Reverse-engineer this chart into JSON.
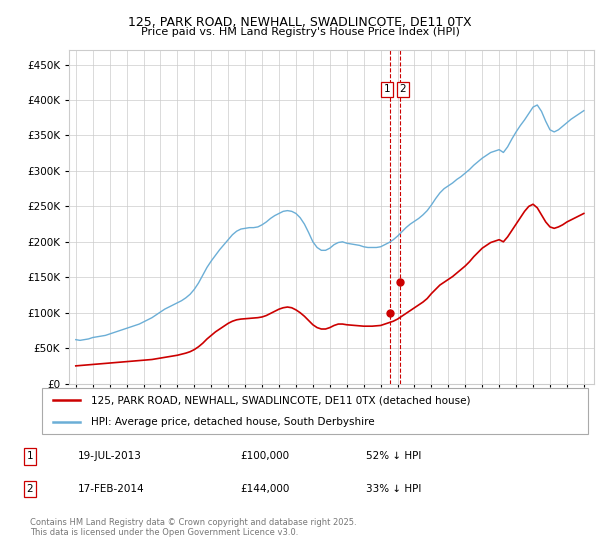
{
  "title1": "125, PARK ROAD, NEWHALL, SWADLINCOTE, DE11 0TX",
  "title2": "Price paid vs. HM Land Registry's House Price Index (HPI)",
  "legend1": "125, PARK ROAD, NEWHALL, SWADLINCOTE, DE11 0TX (detached house)",
  "legend2": "HPI: Average price, detached house, South Derbyshire",
  "footer": "Contains HM Land Registry data © Crown copyright and database right 2025.\nThis data is licensed under the Open Government Licence v3.0.",
  "transaction1_label": "1",
  "transaction1_date": "19-JUL-2013",
  "transaction1_price": "£100,000",
  "transaction1_hpi": "52% ↓ HPI",
  "transaction2_label": "2",
  "transaction2_date": "17-FEB-2014",
  "transaction2_price": "£144,000",
  "transaction2_hpi": "33% ↓ HPI",
  "hpi_color": "#6baed6",
  "price_color": "#cc0000",
  "dashed_line_color": "#cc0000",
  "marker1_date_x": 2013.55,
  "marker1_price_y": 100000,
  "marker2_date_x": 2014.13,
  "marker2_price_y": 144000,
  "ylim": [
    0,
    470000
  ],
  "yticks": [
    0,
    50000,
    100000,
    150000,
    200000,
    250000,
    300000,
    350000,
    400000,
    450000
  ],
  "xlim_left": 1994.6,
  "xlim_right": 2025.6,
  "hpi_data": {
    "x": [
      1995.0,
      1995.25,
      1995.5,
      1995.75,
      1996.0,
      1996.25,
      1996.5,
      1996.75,
      1997.0,
      1997.25,
      1997.5,
      1997.75,
      1998.0,
      1998.25,
      1998.5,
      1998.75,
      1999.0,
      1999.25,
      1999.5,
      1999.75,
      2000.0,
      2000.25,
      2000.5,
      2000.75,
      2001.0,
      2001.25,
      2001.5,
      2001.75,
      2002.0,
      2002.25,
      2002.5,
      2002.75,
      2003.0,
      2003.25,
      2003.5,
      2003.75,
      2004.0,
      2004.25,
      2004.5,
      2004.75,
      2005.0,
      2005.25,
      2005.5,
      2005.75,
      2006.0,
      2006.25,
      2006.5,
      2006.75,
      2007.0,
      2007.25,
      2007.5,
      2007.75,
      2008.0,
      2008.25,
      2008.5,
      2008.75,
      2009.0,
      2009.25,
      2009.5,
      2009.75,
      2010.0,
      2010.25,
      2010.5,
      2010.75,
      2011.0,
      2011.25,
      2011.5,
      2011.75,
      2012.0,
      2012.25,
      2012.5,
      2012.75,
      2013.0,
      2013.25,
      2013.5,
      2013.75,
      2014.0,
      2014.25,
      2014.5,
      2014.75,
      2015.0,
      2015.25,
      2015.5,
      2015.75,
      2016.0,
      2016.25,
      2016.5,
      2016.75,
      2017.0,
      2017.25,
      2017.5,
      2017.75,
      2018.0,
      2018.25,
      2018.5,
      2018.75,
      2019.0,
      2019.25,
      2019.5,
      2019.75,
      2020.0,
      2020.25,
      2020.5,
      2020.75,
      2021.0,
      2021.25,
      2021.5,
      2021.75,
      2022.0,
      2022.25,
      2022.5,
      2022.75,
      2023.0,
      2023.25,
      2023.5,
      2023.75,
      2024.0,
      2024.25,
      2024.5,
      2024.75,
      2025.0
    ],
    "y": [
      62000,
      61000,
      62000,
      63000,
      65000,
      66000,
      67000,
      68000,
      70000,
      72000,
      74000,
      76000,
      78000,
      80000,
      82000,
      84000,
      87000,
      90000,
      93000,
      97000,
      101000,
      105000,
      108000,
      111000,
      114000,
      117000,
      121000,
      126000,
      133000,
      142000,
      153000,
      164000,
      173000,
      181000,
      189000,
      196000,
      203000,
      210000,
      215000,
      218000,
      219000,
      220000,
      220000,
      221000,
      224000,
      228000,
      233000,
      237000,
      240000,
      243000,
      244000,
      243000,
      240000,
      234000,
      225000,
      213000,
      200000,
      192000,
      188000,
      188000,
      191000,
      196000,
      199000,
      200000,
      198000,
      197000,
      196000,
      195000,
      193000,
      192000,
      192000,
      192000,
      193000,
      196000,
      199000,
      203000,
      208000,
      214000,
      220000,
      225000,
      229000,
      233000,
      238000,
      244000,
      252000,
      261000,
      269000,
      275000,
      279000,
      283000,
      288000,
      292000,
      297000,
      302000,
      308000,
      313000,
      318000,
      322000,
      326000,
      328000,
      330000,
      326000,
      334000,
      345000,
      355000,
      364000,
      372000,
      381000,
      390000,
      393000,
      384000,
      370000,
      358000,
      355000,
      358000,
      363000,
      368000,
      373000,
      377000,
      381000,
      385000
    ]
  },
  "price_data": {
    "x": [
      1995.0,
      1995.25,
      1995.5,
      1995.75,
      1996.0,
      1996.25,
      1996.5,
      1996.75,
      1997.0,
      1997.25,
      1997.5,
      1997.75,
      1998.0,
      1998.25,
      1998.5,
      1998.75,
      1999.0,
      1999.25,
      1999.5,
      1999.75,
      2000.0,
      2000.25,
      2000.5,
      2000.75,
      2001.0,
      2001.25,
      2001.5,
      2001.75,
      2002.0,
      2002.25,
      2002.5,
      2002.75,
      2003.0,
      2003.25,
      2003.5,
      2003.75,
      2004.0,
      2004.25,
      2004.5,
      2004.75,
      2005.0,
      2005.25,
      2005.5,
      2005.75,
      2006.0,
      2006.25,
      2006.5,
      2006.75,
      2007.0,
      2007.25,
      2007.5,
      2007.75,
      2008.0,
      2008.25,
      2008.5,
      2008.75,
      2009.0,
      2009.25,
      2009.5,
      2009.75,
      2010.0,
      2010.25,
      2010.5,
      2010.75,
      2011.0,
      2011.25,
      2011.5,
      2011.75,
      2012.0,
      2012.25,
      2012.5,
      2012.75,
      2013.0,
      2013.25,
      2013.5,
      2013.75,
      2014.0,
      2014.25,
      2014.5,
      2014.75,
      2015.0,
      2015.25,
      2015.5,
      2015.75,
      2016.0,
      2016.25,
      2016.5,
      2016.75,
      2017.0,
      2017.25,
      2017.5,
      2017.75,
      2018.0,
      2018.25,
      2018.5,
      2018.75,
      2019.0,
      2019.25,
      2019.5,
      2019.75,
      2020.0,
      2020.25,
      2020.5,
      2020.75,
      2021.0,
      2021.25,
      2021.5,
      2021.75,
      2022.0,
      2022.25,
      2022.5,
      2022.75,
      2023.0,
      2023.25,
      2023.5,
      2023.75,
      2024.0,
      2024.25,
      2024.5,
      2024.75,
      2025.0
    ],
    "y": [
      25000,
      25500,
      26000,
      26500,
      27000,
      27500,
      28000,
      28500,
      29000,
      29500,
      30000,
      30500,
      31000,
      31500,
      32000,
      32500,
      33000,
      33500,
      34000,
      35000,
      36000,
      37000,
      38000,
      39000,
      40000,
      41500,
      43000,
      45000,
      48000,
      52000,
      57000,
      63000,
      68000,
      73000,
      77000,
      81000,
      85000,
      88000,
      90000,
      91000,
      91500,
      92000,
      92500,
      93000,
      94000,
      96000,
      99000,
      102000,
      105000,
      107000,
      108000,
      107000,
      104000,
      100000,
      95000,
      89000,
      83000,
      79000,
      77000,
      77000,
      79000,
      82000,
      84000,
      84000,
      83000,
      82500,
      82000,
      81500,
      81000,
      81000,
      81000,
      81500,
      82000,
      84000,
      86000,
      88000,
      91000,
      95000,
      99000,
      103000,
      107000,
      111000,
      115000,
      120000,
      127000,
      133000,
      139000,
      143000,
      147000,
      151000,
      156000,
      161000,
      166000,
      172000,
      179000,
      185000,
      191000,
      195000,
      199000,
      201000,
      203000,
      200000,
      207000,
      216000,
      225000,
      234000,
      243000,
      250000,
      253000,
      248000,
      238000,
      228000,
      221000,
      219000,
      221000,
      224000,
      228000,
      231000,
      234000,
      237000,
      240000
    ]
  }
}
